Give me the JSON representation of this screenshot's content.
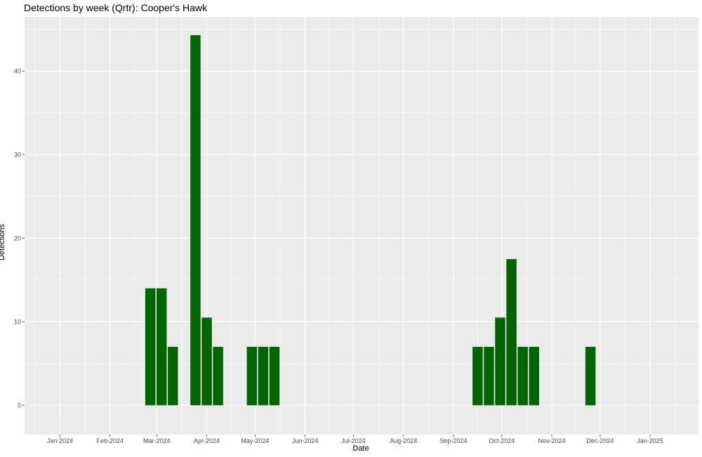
{
  "chart_data": {
    "type": "bar",
    "title": "Detections by week (Qrtr): Cooper's Hawk",
    "xlabel": "Date",
    "ylabel": "Detections",
    "ylim": [
      -3.5,
      46.5
    ],
    "y_ticks": [
      0,
      10,
      20,
      30,
      40
    ],
    "x_range": [
      "2023-12-10",
      "2025-01-31"
    ],
    "x_ticks": [
      {
        "date": "2024-01-01",
        "label": "Jan-2024"
      },
      {
        "date": "2024-02-01",
        "label": "Feb-2024"
      },
      {
        "date": "2024-03-01",
        "label": "Mar-2024"
      },
      {
        "date": "2024-04-01",
        "label": "Apr-2024"
      },
      {
        "date": "2024-05-01",
        "label": "May-2024"
      },
      {
        "date": "2024-06-01",
        "label": "Jun-2024"
      },
      {
        "date": "2024-07-01",
        "label": "Jul-2024"
      },
      {
        "date": "2024-08-01",
        "label": "Aug-2024"
      },
      {
        "date": "2024-09-01",
        "label": "Sep-2024"
      },
      {
        "date": "2024-10-01",
        "label": "Oct-2024"
      },
      {
        "date": "2024-11-01",
        "label": "Nov-2024"
      },
      {
        "date": "2024-12-01",
        "label": "Dec-2024"
      },
      {
        "date": "2025-01-01",
        "label": "Jan-2025"
      }
    ],
    "bar_width_days": 6.3,
    "bar_color": "#006400",
    "grid": true,
    "panel_background": "#ebebeb",
    "x": [
      "2024-02-26",
      "2024-03-04",
      "2024-03-11",
      "2024-03-25",
      "2024-04-01",
      "2024-04-08",
      "2024-04-29",
      "2024-05-06",
      "2024-05-13",
      "2024-09-16",
      "2024-09-23",
      "2024-09-30",
      "2024-10-07",
      "2024-10-14",
      "2024-10-21",
      "2024-11-25"
    ],
    "values": [
      14,
      14,
      7,
      44.3,
      10.5,
      7,
      7,
      7,
      7,
      7,
      7,
      10.5,
      17.5,
      7,
      7,
      7
    ]
  }
}
